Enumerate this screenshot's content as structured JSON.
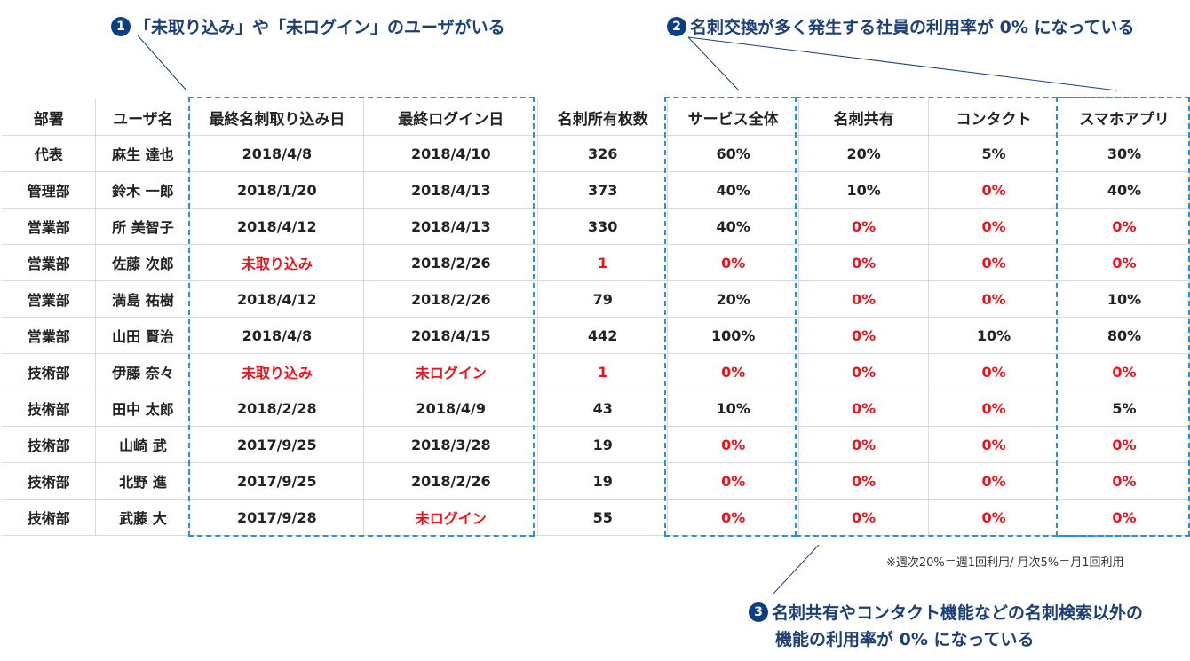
{
  "callouts": [
    {
      "num": "1",
      "text": "「未取り込み」や「未ログイン」のユーザがいる"
    },
    {
      "num": "2",
      "text": "名刺交換が多く発生する社員の利用率が 0% になっている"
    },
    {
      "num": "3",
      "text": "名刺共有やコンタクト機能などの名刺検索以外の",
      "text2": "機能の利用率が 0% になっている"
    }
  ],
  "table": {
    "headers": [
      "部署",
      "ユーザ名",
      "最終名刺取り込み日",
      "最終ログイン日",
      "名刺所有枚数",
      "サービス全体",
      "名刺共有",
      "コンタクト",
      "スマホアプリ"
    ],
    "rows": [
      [
        "代表",
        "麻生 達也",
        "2018/4/8",
        "2018/4/10",
        "326",
        "60%",
        "20%",
        "5%",
        "30%"
      ],
      [
        "管理部",
        "鈴木 一郎",
        "2018/1/20",
        "2018/4/13",
        "373",
        "40%",
        "10%",
        "0%",
        "40%"
      ],
      [
        "営業部",
        "所 美智子",
        "2018/4/12",
        "2018/4/13",
        "330",
        "40%",
        "0%",
        "0%",
        "0%"
      ],
      [
        "営業部",
        "佐藤 次郎",
        "未取り込み",
        "2018/2/26",
        "1",
        "0%",
        "0%",
        "0%",
        "0%"
      ],
      [
        "営業部",
        "満島 祐樹",
        "2018/4/12",
        "2018/2/26",
        "79",
        "20%",
        "0%",
        "0%",
        "10%"
      ],
      [
        "営業部",
        "山田 賢治",
        "2018/4/8",
        "2018/4/15",
        "442",
        "100%",
        "0%",
        "10%",
        "80%"
      ],
      [
        "技術部",
        "伊藤 奈々",
        "未取り込み",
        "未ログイン",
        "1",
        "0%",
        "0%",
        "0%",
        "0%"
      ],
      [
        "技術部",
        "田中 太郎",
        "2018/2/28",
        "2018/4/9",
        "43",
        "10%",
        "0%",
        "0%",
        "5%"
      ],
      [
        "技術部",
        "山崎 武",
        "2017/9/25",
        "2018/3/28",
        "19",
        "0%",
        "0%",
        "0%",
        "0%"
      ],
      [
        "技術部",
        "北野 進",
        "2017/9/25",
        "2018/2/26",
        "19",
        "0%",
        "0%",
        "0%",
        "0%"
      ],
      [
        "技術部",
        "武藤 大",
        "2017/9/28",
        "未ログイン",
        "55",
        "0%",
        "0%",
        "0%",
        "0%"
      ]
    ],
    "highlight": [
      "未取り込み",
      "未ログイン",
      "0%",
      "1"
    ]
  },
  "note": "※週次20%＝週1回利用/ 月次5%＝月1回利用",
  "colors": {
    "accent": "#2d8fd6",
    "highlight": "#e8141b",
    "callout": "#1c3f74"
  }
}
